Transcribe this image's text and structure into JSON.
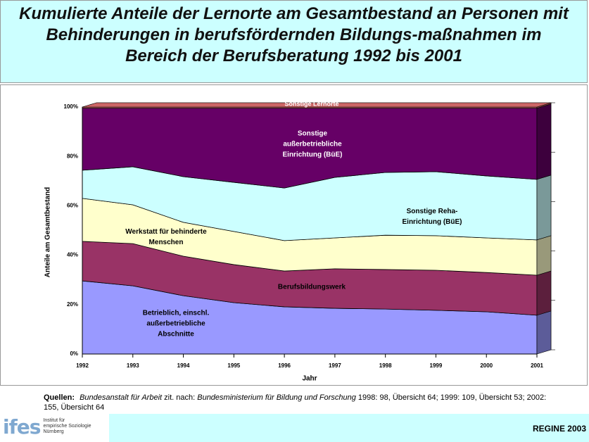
{
  "title": "Kumulierte Anteile der Lernorte am Gesamtbestand an Personen mit Behinderungen in berufsfördernden Bildungs-maßnahmen im Bereich der Berufsberatung 1992 bis 2001",
  "chart_data": {
    "type": "stacked_area",
    "x_label": "Jahr",
    "y_label": "Anteile am Gesamtbestand",
    "categories": [
      "1992",
      "1993",
      "1994",
      "1995",
      "1996",
      "1997",
      "1998",
      "1999",
      "2000",
      "2001"
    ],
    "ylim": [
      0,
      100
    ],
    "yticks": [
      {
        "value": 0,
        "label": "0%"
      },
      {
        "value": 20,
        "label": "20%"
      },
      {
        "value": 40,
        "label": "40%"
      },
      {
        "value": 60,
        "label": "60%"
      },
      {
        "value": 80,
        "label": "80%"
      },
      {
        "value": 100,
        "label": "100%"
      }
    ],
    "grid": false,
    "series": [
      {
        "name": "Betrieblich, einschl. außerbetriebliche Abschnitte",
        "color": "#9999ff",
        "values": [
          29.6,
          27.6,
          23.6,
          20.8,
          19.1,
          18.5,
          18.2,
          17.7,
          17.1,
          15.7
        ]
      },
      {
        "name": "Berufsbildungswerk",
        "color": "#993366",
        "values": [
          16.0,
          17.1,
          16.0,
          15.4,
          14.5,
          16.0,
          16.0,
          16.2,
          15.9,
          16.2
        ]
      },
      {
        "name": "Werkstatt für behinderte Menschen",
        "color": "#ffffcc",
        "values": [
          17.4,
          15.7,
          13.7,
          13.4,
          12.3,
          12.5,
          13.9,
          14.0,
          14.0,
          14.3
        ]
      },
      {
        "name": "Sonstige Reha-Einrichtung (BüE)",
        "color": "#ccffff",
        "values": [
          11.4,
          15.4,
          18.5,
          19.9,
          21.3,
          24.5,
          25.4,
          25.9,
          25.1,
          24.5
        ]
      },
      {
        "name": "Sonstige außerbetriebliche Einrichtung (BüE)",
        "color": "#660066",
        "values": [
          25.1,
          23.7,
          27.7,
          30.0,
          32.3,
          28.0,
          26.0,
          25.7,
          27.4,
          28.8
        ]
      },
      {
        "name": "Sonstige Lernorte",
        "color": "#cc6666",
        "values": [
          0.5,
          0.5,
          0.5,
          0.5,
          0.5,
          0.5,
          0.5,
          0.5,
          0.5,
          0.5
        ]
      }
    ]
  },
  "source": {
    "label": "Quellen:",
    "parts": [
      "Bundesanstalt für Arbeit",
      "zit. nach:",
      "Bundesministerium für Bildung und Forschung",
      "1998: 98, Übersicht 64; 1999: 109, Übersicht 53; 2002: 155, Übersicht 64"
    ]
  },
  "logo": {
    "mark": "ifes",
    "lines": [
      "Institut für",
      "empirische Soziologie",
      "Nürnberg"
    ]
  },
  "footer": "REGINE 2003"
}
